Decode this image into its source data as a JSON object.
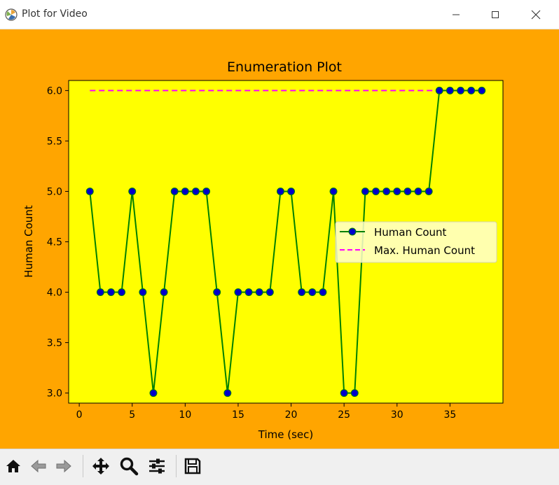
{
  "window": {
    "title": "Plot for Video",
    "minimize_icon": "minimize-icon",
    "maximize_icon": "maximize-icon",
    "close_icon": "close-icon"
  },
  "colors": {
    "figure_bg": "#FFA500",
    "axes_bg": "#FFFF00",
    "line": "#008000",
    "marker": "#0000CC",
    "max_line": "#FF00FF",
    "legend_bg": "#FFFFCC"
  },
  "toolbar": {
    "buttons": [
      {
        "name": "home-button",
        "icon": "home-icon"
      },
      {
        "name": "back-button",
        "icon": "arrow-left-icon"
      },
      {
        "name": "forward-button",
        "icon": "arrow-right-icon"
      },
      {
        "name": "pan-button",
        "icon": "move-icon"
      },
      {
        "name": "zoom-button",
        "icon": "magnifier-icon"
      },
      {
        "name": "configure-subplots-button",
        "icon": "sliders-icon"
      },
      {
        "name": "save-button",
        "icon": "floppy-disk-icon"
      }
    ]
  },
  "chart_data": {
    "type": "line",
    "title": "Enumeration Plot",
    "xlabel": "Time (sec)",
    "ylabel": "Human Count",
    "xlim": [
      -1,
      40
    ],
    "ylim": [
      2.9,
      6.1
    ],
    "xticks": [
      "0",
      "5",
      "10",
      "15",
      "20",
      "25",
      "30",
      "35"
    ],
    "xtick_values": [
      0,
      5,
      10,
      15,
      20,
      25,
      30,
      35
    ],
    "yticks": [
      "3.0",
      "3.5",
      "4.0",
      "4.5",
      "5.0",
      "5.5",
      "6.0"
    ],
    "ytick_values": [
      3.0,
      3.5,
      4.0,
      4.5,
      5.0,
      5.5,
      6.0
    ],
    "grid": false,
    "legend_position": "center-right",
    "series": [
      {
        "name": "Human Count",
        "style": "solid-with-markers",
        "x": [
          1,
          2,
          3,
          4,
          5,
          6,
          7,
          8,
          9,
          10,
          11,
          12,
          13,
          14,
          15,
          16,
          17,
          18,
          19,
          20,
          21,
          22,
          23,
          24,
          25,
          26,
          27,
          28,
          29,
          30,
          31,
          32,
          33,
          34,
          35,
          36,
          37,
          38
        ],
        "y": [
          5,
          4,
          4,
          4,
          5,
          4,
          3,
          4,
          5,
          5,
          5,
          5,
          4,
          3,
          4,
          4,
          4,
          4,
          5,
          5,
          4,
          4,
          4,
          5,
          3,
          3,
          5,
          5,
          5,
          5,
          5,
          5,
          5,
          6,
          6,
          6,
          6,
          6
        ]
      },
      {
        "name": "Max. Human Count",
        "style": "dashed",
        "x": [
          1,
          38
        ],
        "y": [
          6,
          6
        ]
      }
    ]
  }
}
